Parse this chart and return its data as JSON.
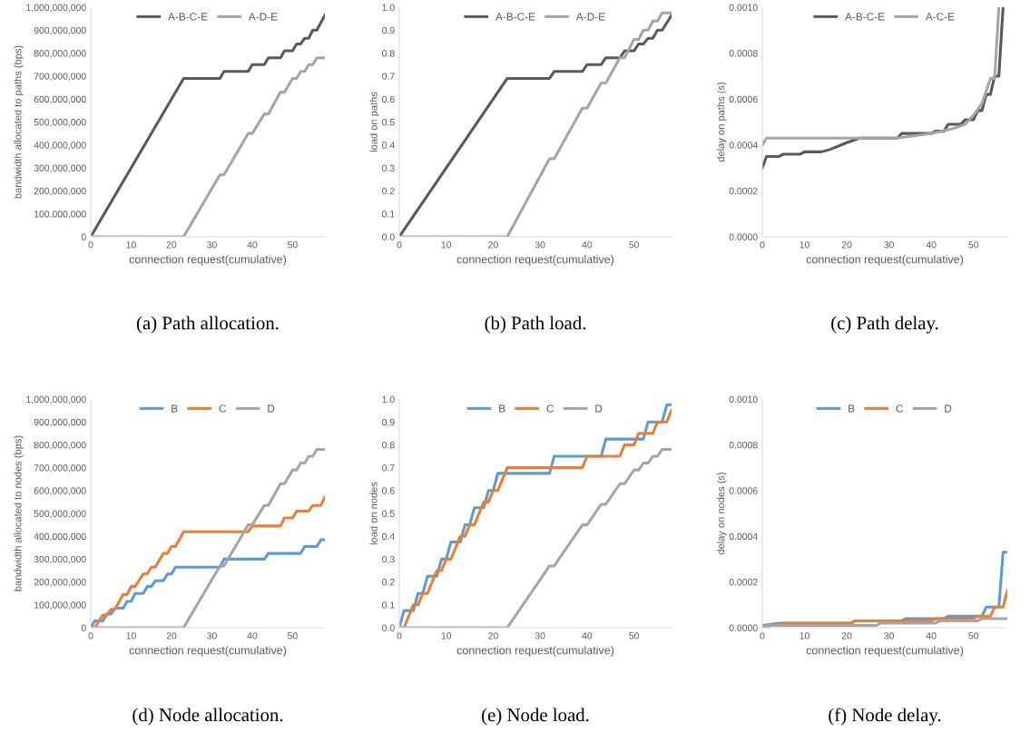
{
  "chart_data": [
    {
      "type": "line",
      "xlabel": "connection request(cumulative)",
      "ylabel": "bandwidth allocated to paths (bps)",
      "annotations": [
        "(a) Path allocation."
      ],
      "legend": "top",
      "grid": false,
      "marker": "none",
      "line_style": "solid",
      "xlim": [
        0,
        58
      ],
      "xticks": [
        0,
        10,
        20,
        30,
        40,
        50
      ],
      "ylim": [
        0,
        1000000000
      ],
      "yticks": [
        {
          "value": 0,
          "label": "0"
        },
        {
          "value": 100000000,
          "label": "100,000,000"
        },
        {
          "value": 200000000,
          "label": "200,000,000"
        },
        {
          "value": 300000000,
          "label": "300,000,000"
        },
        {
          "value": 400000000,
          "label": "400,000,000"
        },
        {
          "value": 500000000,
          "label": "500,000,000"
        },
        {
          "value": 600000000,
          "label": "600,000,000"
        },
        {
          "value": 700000000,
          "label": "700,000,000"
        },
        {
          "value": 800000000,
          "label": "800,000,000"
        },
        {
          "value": 900000000,
          "label": "900,000,000"
        },
        {
          "value": 1000000000,
          "label": "1,000,000,000"
        }
      ],
      "series": [
        {
          "name": "A-B-C-E",
          "color": "#595959",
          "x": [
            0,
            23,
            32,
            33,
            39,
            40,
            43,
            44,
            47,
            48,
            50,
            51,
            52,
            53,
            54,
            55,
            56,
            58
          ],
          "values": [
            0,
            690000000,
            690000000,
            720000000,
            720000000,
            750000000,
            750000000,
            780000000,
            780000000,
            810000000,
            810000000,
            840000000,
            840000000,
            865000000,
            865000000,
            900000000,
            900000000,
            965000000
          ]
        },
        {
          "name": "A-D-E",
          "color": "#a5a5a5",
          "x": [
            0,
            23,
            32,
            33,
            39,
            40,
            43,
            44,
            47,
            48,
            50,
            51,
            52,
            53,
            54,
            55,
            56,
            58
          ],
          "values": [
            0,
            0,
            270000000,
            270000000,
            450000000,
            450000000,
            535000000,
            535000000,
            630000000,
            630000000,
            690000000,
            690000000,
            720000000,
            720000000,
            750000000,
            750000000,
            780000000,
            780000000
          ]
        }
      ]
    },
    {
      "type": "line",
      "xlabel": "connection request(cumulative)",
      "ylabel": "load on paths",
      "annotations": [
        "(b) Path load."
      ],
      "legend": "top",
      "grid": false,
      "marker": "none",
      "line_style": "solid",
      "xlim": [
        0,
        58
      ],
      "xticks": [
        0,
        10,
        20,
        30,
        40,
        50
      ],
      "ylim": [
        0,
        1.0
      ],
      "yticks": [
        {
          "value": 0,
          "label": "0.0"
        },
        {
          "value": 0.1,
          "label": "0.1"
        },
        {
          "value": 0.2,
          "label": "0.2"
        },
        {
          "value": 0.3,
          "label": "0.3"
        },
        {
          "value": 0.4,
          "label": "0.4"
        },
        {
          "value": 0.5,
          "label": "0.5"
        },
        {
          "value": 0.6,
          "label": "0.6"
        },
        {
          "value": 0.7,
          "label": "0.7"
        },
        {
          "value": 0.8,
          "label": "0.8"
        },
        {
          "value": 0.9,
          "label": "0.9"
        },
        {
          "value": 1.0,
          "label": "1.0"
        }
      ],
      "series": [
        {
          "name": "A-B-C-E",
          "color": "#595959",
          "x": [
            0,
            23,
            32,
            33,
            39,
            40,
            43,
            44,
            47,
            48,
            50,
            51,
            52,
            53,
            54,
            55,
            56,
            58
          ],
          "values": [
            0,
            0.69,
            0.69,
            0.72,
            0.72,
            0.75,
            0.75,
            0.78,
            0.78,
            0.81,
            0.81,
            0.84,
            0.84,
            0.865,
            0.865,
            0.9,
            0.9,
            0.965
          ]
        },
        {
          "name": "A-D-E",
          "color": "#a5a5a5",
          "x": [
            0,
            23,
            32,
            33,
            39,
            40,
            43,
            44,
            47,
            48,
            50,
            51,
            52,
            53,
            54,
            55,
            56,
            58
          ],
          "values": [
            0,
            0,
            0.34,
            0.34,
            0.56,
            0.56,
            0.67,
            0.67,
            0.78,
            0.78,
            0.86,
            0.86,
            0.9,
            0.9,
            0.94,
            0.94,
            0.975,
            0.975
          ]
        }
      ]
    },
    {
      "type": "line",
      "xlabel": "connection request(cumulative)",
      "ylabel": "delay on paths (s)",
      "annotations": [
        "(c) Path delay."
      ],
      "legend": "top",
      "grid": false,
      "marker": "none",
      "line_style": "solid",
      "xlim": [
        0,
        58
      ],
      "xticks": [
        0,
        10,
        20,
        30,
        40,
        50
      ],
      "ylim": [
        0,
        0.001
      ],
      "yticks": [
        {
          "value": 0,
          "label": "0.0000"
        },
        {
          "value": 0.0002,
          "label": "0.0002"
        },
        {
          "value": 0.0004,
          "label": "0.0004"
        },
        {
          "value": 0.0006,
          "label": "0.0006"
        },
        {
          "value": 0.0008,
          "label": "0.0008"
        },
        {
          "value": 0.001,
          "label": "0.0010"
        }
      ],
      "series": [
        {
          "name": "A-B-C-E",
          "color": "#595959",
          "x": [
            0,
            1,
            4,
            5,
            9,
            10,
            14,
            16,
            20,
            23,
            32,
            33,
            40,
            41,
            43,
            44,
            47,
            48,
            50,
            51,
            52,
            53,
            54,
            55,
            56,
            57
          ],
          "values": [
            0.0003,
            0.00035,
            0.00035,
            0.00036,
            0.00036,
            0.00037,
            0.00037,
            0.00038,
            0.00041,
            0.00043,
            0.00043,
            0.00045,
            0.00045,
            0.00046,
            0.00046,
            0.00049,
            0.00049,
            0.00051,
            0.00051,
            0.00055,
            0.00055,
            0.00062,
            0.00062,
            0.0007,
            0.0007,
            0.001
          ]
        },
        {
          "name": "A-C-E",
          "color": "#a5a5a5",
          "x": [
            0,
            1,
            23,
            32,
            40,
            45,
            48,
            50,
            52,
            54,
            55,
            56
          ],
          "values": [
            0.0004,
            0.00043,
            0.00043,
            0.00043,
            0.00045,
            0.00047,
            0.00049,
            0.00053,
            0.00058,
            0.00069,
            0.00069,
            0.001
          ]
        }
      ]
    },
    {
      "type": "line",
      "xlabel": "connection request(cumulative)",
      "ylabel": "bandwidth allocated to nodes (bps)",
      "annotations": [
        "(d) Node allocation."
      ],
      "legend": "top",
      "grid": false,
      "marker": "none",
      "line_style": "solid",
      "xlim": [
        0,
        58
      ],
      "xticks": [
        0,
        10,
        20,
        30,
        40,
        50
      ],
      "ylim": [
        0,
        1000000000
      ],
      "yticks": [
        {
          "value": 0,
          "label": "0"
        },
        {
          "value": 100000000,
          "label": "100,000,000"
        },
        {
          "value": 200000000,
          "label": "200,000,000"
        },
        {
          "value": 300000000,
          "label": "300,000,000"
        },
        {
          "value": 400000000,
          "label": "400,000,000"
        },
        {
          "value": 500000000,
          "label": "500,000,000"
        },
        {
          "value": 600000000,
          "label": "600,000,000"
        },
        {
          "value": 700000000,
          "label": "700,000,000"
        },
        {
          "value": 800000000,
          "label": "800,000,000"
        },
        {
          "value": 900000000,
          "label": "900,000,000"
        },
        {
          "value": 1000000000,
          "label": "1,000,000,000"
        }
      ],
      "series": [
        {
          "name": "B",
          "color": "#5b9bd5",
          "x": [
            0,
            1,
            3,
            4,
            5,
            6,
            8,
            9,
            10,
            11,
            13,
            14,
            15,
            16,
            18,
            19,
            20,
            21,
            32,
            33,
            43,
            44,
            52,
            53,
            56,
            57,
            58
          ],
          "values": [
            0,
            30000000,
            30000000,
            60000000,
            60000000,
            85000000,
            85000000,
            115000000,
            115000000,
            150000000,
            150000000,
            180000000,
            180000000,
            205000000,
            205000000,
            235000000,
            235000000,
            265000000,
            265000000,
            300000000,
            300000000,
            325000000,
            325000000,
            355000000,
            355000000,
            385000000,
            385000000
          ]
        },
        {
          "name": "C",
          "color": "#ed7d31",
          "x": [
            1,
            3,
            4,
            5,
            6,
            8,
            9,
            10,
            11,
            13,
            14,
            15,
            16,
            18,
            19,
            20,
            21,
            23,
            39,
            40,
            47,
            48,
            50,
            51,
            54,
            55,
            57,
            58
          ],
          "values": [
            0,
            55000000,
            55000000,
            80000000,
            80000000,
            145000000,
            145000000,
            180000000,
            180000000,
            235000000,
            235000000,
            265000000,
            265000000,
            325000000,
            325000000,
            355000000,
            355000000,
            420000000,
            420000000,
            445000000,
            445000000,
            480000000,
            480000000,
            510000000,
            510000000,
            535000000,
            535000000,
            570000000
          ]
        },
        {
          "name": "D",
          "color": "#a5a5a5",
          "x": [
            0,
            23,
            32,
            33,
            39,
            40,
            43,
            44,
            47,
            48,
            50,
            51,
            52,
            53,
            54,
            55,
            56,
            58
          ],
          "values": [
            0,
            0,
            270000000,
            270000000,
            450000000,
            450000000,
            535000000,
            535000000,
            630000000,
            630000000,
            690000000,
            690000000,
            720000000,
            720000000,
            750000000,
            750000000,
            780000000,
            780000000
          ]
        }
      ]
    },
    {
      "type": "line",
      "xlabel": "connection request(cumulative)",
      "ylabel": "load on nodes",
      "annotations": [
        "(e) Node load."
      ],
      "legend": "top",
      "grid": false,
      "marker": "none",
      "line_style": "solid",
      "xlim": [
        0,
        58
      ],
      "xticks": [
        0,
        10,
        20,
        30,
        40,
        50
      ],
      "ylim": [
        0,
        1.0
      ],
      "yticks": [
        {
          "value": 0,
          "label": "0.0"
        },
        {
          "value": 0.1,
          "label": "0.1"
        },
        {
          "value": 0.2,
          "label": "0.2"
        },
        {
          "value": 0.3,
          "label": "0.3"
        },
        {
          "value": 0.4,
          "label": "0.4"
        },
        {
          "value": 0.5,
          "label": "0.5"
        },
        {
          "value": 0.6,
          "label": "0.6"
        },
        {
          "value": 0.7,
          "label": "0.7"
        },
        {
          "value": 0.8,
          "label": "0.8"
        },
        {
          "value": 0.9,
          "label": "0.9"
        },
        {
          "value": 1.0,
          "label": "1.0"
        }
      ],
      "series": [
        {
          "name": "B",
          "color": "#5b9bd5",
          "x": [
            0,
            1,
            3,
            4,
            5,
            6,
            8,
            9,
            10,
            11,
            13,
            14,
            15,
            16,
            18,
            19,
            20,
            21,
            32,
            33,
            43,
            44,
            52,
            53,
            56,
            57,
            58
          ],
          "values": [
            0,
            0.075,
            0.075,
            0.15,
            0.15,
            0.225,
            0.225,
            0.3,
            0.3,
            0.375,
            0.375,
            0.45,
            0.45,
            0.525,
            0.525,
            0.6,
            0.6,
            0.675,
            0.675,
            0.75,
            0.75,
            0.825,
            0.825,
            0.9,
            0.9,
            0.975,
            0.975
          ]
        },
        {
          "name": "C",
          "color": "#ed7d31",
          "x": [
            1,
            3,
            4,
            5,
            6,
            8,
            9,
            10,
            11,
            13,
            14,
            15,
            16,
            18,
            19,
            20,
            21,
            23,
            39,
            40,
            47,
            48,
            50,
            51,
            54,
            55,
            57,
            58
          ],
          "values": [
            0,
            0.1,
            0.1,
            0.15,
            0.15,
            0.25,
            0.25,
            0.3,
            0.3,
            0.4,
            0.4,
            0.45,
            0.45,
            0.55,
            0.55,
            0.6,
            0.6,
            0.7,
            0.7,
            0.75,
            0.75,
            0.8,
            0.8,
            0.85,
            0.85,
            0.9,
            0.9,
            0.95
          ]
        },
        {
          "name": "D",
          "color": "#a5a5a5",
          "x": [
            0,
            23,
            32,
            33,
            39,
            40,
            43,
            44,
            47,
            48,
            50,
            51,
            52,
            53,
            54,
            55,
            56,
            58
          ],
          "values": [
            0,
            0,
            0.27,
            0.27,
            0.45,
            0.45,
            0.54,
            0.54,
            0.63,
            0.63,
            0.69,
            0.69,
            0.72,
            0.72,
            0.75,
            0.75,
            0.78,
            0.78
          ]
        }
      ]
    },
    {
      "type": "line",
      "xlabel": "connection request(cumulative)",
      "ylabel": "delay on nodes (s)",
      "annotations": [
        "(f) Node delay."
      ],
      "legend": "top",
      "grid": false,
      "marker": "none",
      "line_style": "solid",
      "xlim": [
        0,
        58
      ],
      "xticks": [
        0,
        10,
        20,
        30,
        40,
        50
      ],
      "ylim": [
        0,
        0.001
      ],
      "yticks": [
        {
          "value": 0,
          "label": "0.0000"
        },
        {
          "value": 0.0002,
          "label": "0.0002"
        },
        {
          "value": 0.0004,
          "label": "0.0004"
        },
        {
          "value": 0.0006,
          "label": "0.0006"
        },
        {
          "value": 0.0008,
          "label": "0.0008"
        },
        {
          "value": 0.001,
          "label": "0.0010"
        }
      ],
      "series": [
        {
          "name": "B",
          "color": "#5b9bd5",
          "x": [
            0,
            4,
            16,
            17,
            21,
            22,
            33,
            34,
            43,
            44,
            52,
            53,
            56,
            57,
            58
          ],
          "values": [
            1e-05,
            2e-05,
            2e-05,
            2e-05,
            2e-05,
            3e-05,
            3e-05,
            4e-05,
            4e-05,
            5e-05,
            5e-05,
            9e-05,
            9e-05,
            0.00033,
            0.00033
          ]
        },
        {
          "name": "C",
          "color": "#ed7d31",
          "x": [
            0,
            5,
            16,
            17,
            21,
            22,
            40,
            41,
            47,
            48,
            50,
            51,
            54,
            55,
            57,
            58
          ],
          "values": [
            0,
            2e-05,
            2e-05,
            2e-05,
            2e-05,
            3e-05,
            3e-05,
            4e-05,
            4e-05,
            4e-05,
            4e-05,
            5e-05,
            5e-05,
            9e-05,
            9e-05,
            0.00016
          ]
        },
        {
          "name": "D",
          "color": "#a5a5a5",
          "x": [
            0,
            1,
            27,
            28,
            41,
            42,
            48,
            49,
            51,
            52,
            55,
            56,
            58
          ],
          "values": [
            0,
            1e-05,
            1e-05,
            2e-05,
            2e-05,
            3e-05,
            3e-05,
            3e-05,
            3e-05,
            4e-05,
            4e-05,
            4e-05,
            4e-05
          ]
        }
      ]
    }
  ]
}
